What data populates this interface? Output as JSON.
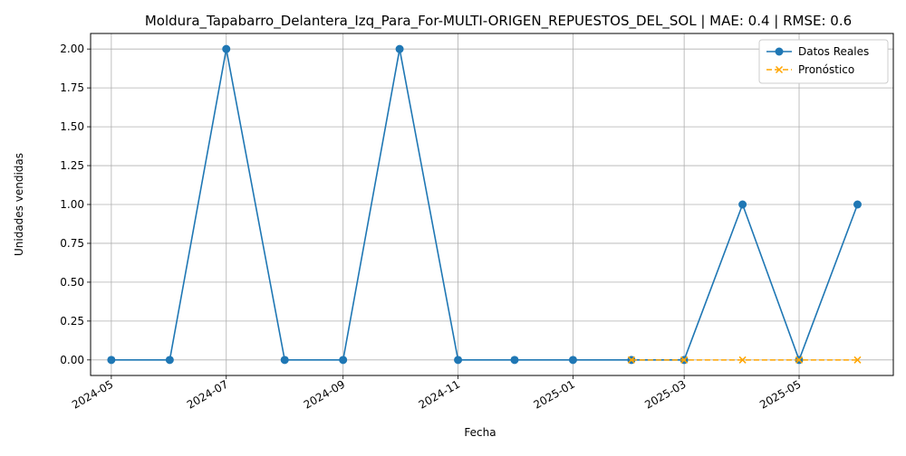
{
  "chart_data": {
    "type": "line",
    "title": "Moldura_Tapabarro_Delantera_Izq_Para_For-MULTI-ORIGEN_REPUESTOS_DEL_SOL | MAE: 0.4 | RMSE: 0.6",
    "xlabel": "Fecha",
    "ylabel": "Unidades vendidas",
    "x_ticks": [
      "2024-05",
      "2024-07",
      "2024-09",
      "2024-11",
      "2025-01",
      "2025-03",
      "2025-05"
    ],
    "y_ticks": [
      "0.00",
      "0.25",
      "0.50",
      "0.75",
      "1.00",
      "1.25",
      "1.50",
      "1.75",
      "2.00"
    ],
    "xlim": [
      "2024-04-20",
      "2025-06-20"
    ],
    "ylim": [
      -0.1,
      2.1
    ],
    "grid": true,
    "legend_position": "top-right",
    "series": [
      {
        "name": "Datos Reales",
        "color": "#1f77b4",
        "marker": "circle",
        "linestyle": "solid",
        "x": [
          "2024-05-01",
          "2024-06-01",
          "2024-07-01",
          "2024-08-01",
          "2024-09-01",
          "2024-10-01",
          "2024-11-01",
          "2024-12-01",
          "2025-01-01",
          "2025-02-01",
          "2025-03-01",
          "2025-04-01",
          "2025-05-01",
          "2025-06-01"
        ],
        "y": [
          0,
          0,
          2,
          0,
          0,
          2,
          0,
          0,
          0,
          0,
          0,
          1,
          0,
          1
        ]
      },
      {
        "name": "Pronóstico",
        "color": "#ffa500",
        "marker": "x",
        "linestyle": "dashed",
        "x": [
          "2025-02-01",
          "2025-03-01",
          "2025-04-01",
          "2025-05-01",
          "2025-06-01"
        ],
        "y": [
          0,
          0,
          0,
          0,
          0
        ]
      }
    ]
  }
}
